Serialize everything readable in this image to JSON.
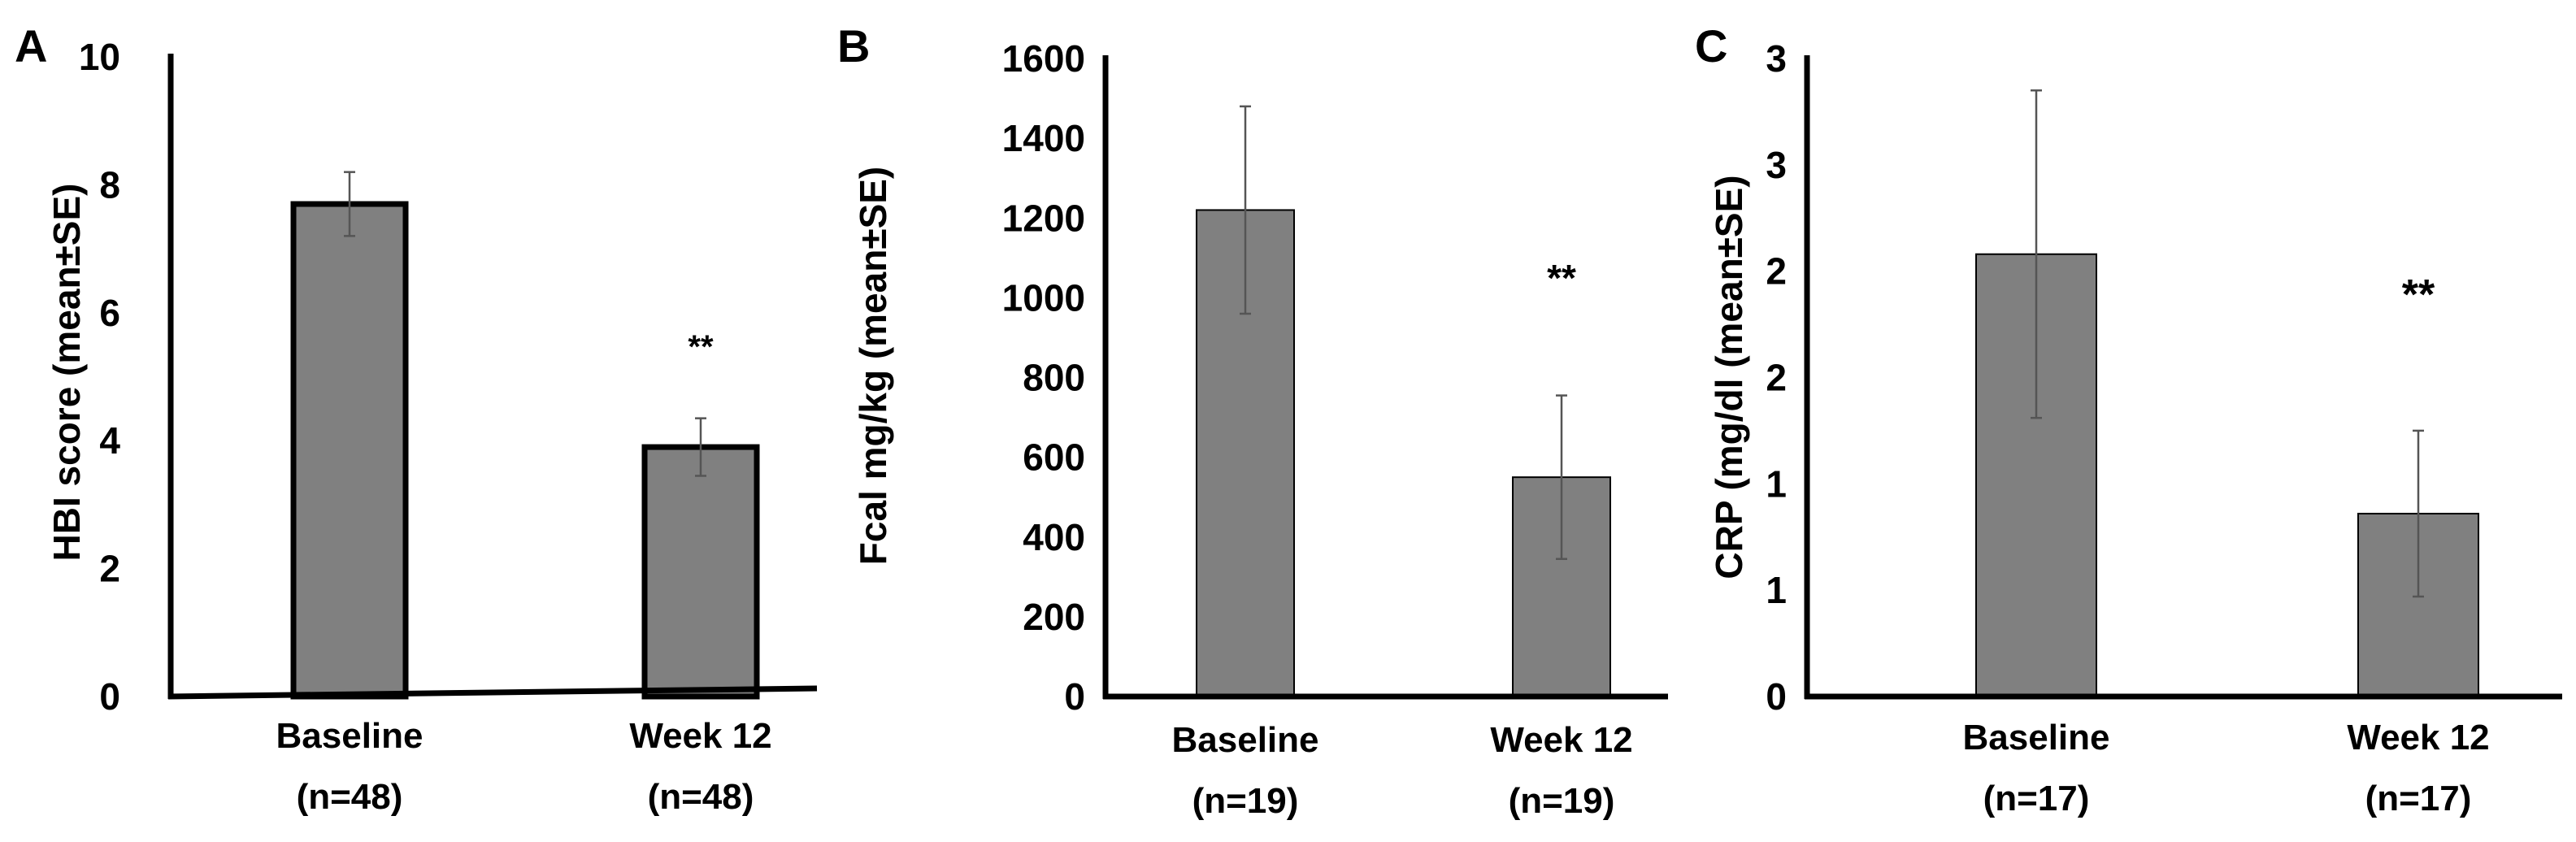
{
  "chart_data": [
    {
      "panel": "A",
      "type": "bar",
      "ylabel": "HBI score (mean±SE)",
      "ylim": [
        0,
        10
      ],
      "yticks": [
        0,
        2,
        4,
        6,
        8,
        10
      ],
      "ytick_labels": [
        "0",
        "2",
        "4",
        "6",
        "8",
        "10"
      ],
      "categories": [
        {
          "name": "Baseline",
          "n": "(n=48)"
        },
        {
          "name": "Week 12",
          "n": "(n=48)"
        }
      ],
      "values": [
        7.7,
        3.9
      ],
      "errors": [
        0.5,
        0.45
      ],
      "annotations": [
        "",
        "**"
      ],
      "bar_color": "#808080"
    },
    {
      "panel": "B",
      "type": "bar",
      "ylabel": "Fcal mg/kg (mean±SE)",
      "ylim": [
        0,
        1600
      ],
      "yticks": [
        0,
        200,
        400,
        600,
        800,
        1000,
        1200,
        1400,
        1600
      ],
      "ytick_labels": [
        "0",
        "200",
        "400",
        "600",
        "800",
        "1000",
        "1200",
        "1400",
        "1600"
      ],
      "categories": [
        {
          "name": "Baseline",
          "n": "(n=19)"
        },
        {
          "name": "Week 12",
          "n": "(n=19)"
        }
      ],
      "values": [
        1220,
        550
      ],
      "errors": [
        260,
        205
      ],
      "annotations": [
        "",
        "**"
      ],
      "bar_color": "#808080"
    },
    {
      "panel": "C",
      "type": "bar",
      "ylabel": "CRP (mg/dl (mean±SE)",
      "ylim": [
        0,
        3
      ],
      "yticks": [
        0,
        0.5,
        1,
        1.5,
        2,
        2.5,
        3
      ],
      "ytick_labels": [
        "0",
        "1",
        "1",
        "2",
        "2",
        "3",
        "3"
      ],
      "categories": [
        {
          "name": "Baseline",
          "n": "(n=17)"
        },
        {
          "name": "Week 12",
          "n": "(n=17)"
        }
      ],
      "values": [
        2.08,
        0.86
      ],
      "errors": [
        0.77,
        0.39
      ],
      "annotations": [
        "",
        "**"
      ],
      "bar_color": "#808080"
    }
  ]
}
